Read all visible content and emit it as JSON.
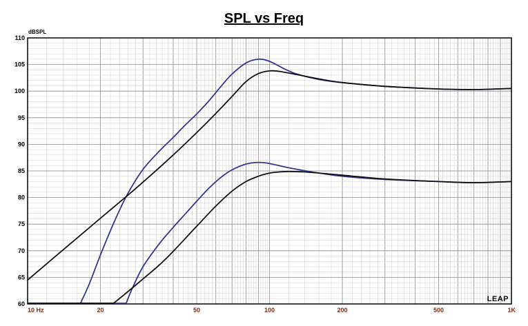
{
  "chart_data": {
    "type": "line",
    "title": "SPL vs Freq",
    "ylabel": "dBSPL",
    "xscale": "log",
    "xlim": [
      10,
      1000
    ],
    "ylim": [
      60,
      110
    ],
    "grid": true,
    "yticks": [
      110,
      105,
      100,
      95,
      90,
      85,
      80,
      75,
      70,
      65,
      60
    ],
    "xtick_labels": [
      {
        "x": 10,
        "label": "10 Hz"
      },
      {
        "x": 20,
        "label": "20"
      },
      {
        "x": 50,
        "label": "50"
      },
      {
        "x": 100,
        "label": "100"
      },
      {
        "x": 200,
        "label": "200"
      },
      {
        "x": 500,
        "label": "500"
      },
      {
        "x": 1000,
        "label": "1K"
      }
    ],
    "series": [
      {
        "color": "#34348f",
        "x": [
          16.5,
          18,
          20,
          23,
          26,
          30,
          35,
          40,
          45,
          50,
          56,
          63,
          70,
          80,
          90,
          100,
          115,
          130,
          160,
          200,
          300,
          400,
          500,
          700,
          1000
        ],
        "y": [
          60,
          63.8,
          69.2,
          75.8,
          80.8,
          85.3,
          88.7,
          91.3,
          93.7,
          95.7,
          98.1,
          100.9,
          103.2,
          105.3,
          106.0,
          105.6,
          104.2,
          103.2,
          102.2,
          101.6,
          100.9,
          100.6,
          100.4,
          100.3,
          100.5
        ]
      },
      {
        "color": "#111111",
        "x": [
          10,
          15,
          20,
          25,
          30,
          40,
          50,
          60,
          70,
          80,
          90,
          100,
          110,
          130,
          160,
          200,
          300,
          500,
          700,
          1000
        ],
        "y": [
          64.5,
          71.3,
          76.1,
          79.8,
          82.9,
          88.0,
          92.2,
          95.8,
          99.0,
          101.8,
          103.3,
          103.8,
          103.7,
          103.1,
          102.3,
          101.6,
          100.9,
          100.4,
          100.3,
          100.5
        ]
      },
      {
        "color": "#34348f",
        "x": [
          25.5,
          27,
          30,
          35,
          40,
          45,
          50,
          56,
          63,
          70,
          80,
          90,
          100,
          120,
          150,
          200,
          300,
          500,
          700,
          1000
        ],
        "y": [
          60,
          62.8,
          67.0,
          71.3,
          74.4,
          77.0,
          79.3,
          81.7,
          83.8,
          85.2,
          86.3,
          86.6,
          86.4,
          85.6,
          84.8,
          84.0,
          83.4,
          83.0,
          82.8,
          83.0
        ]
      },
      {
        "color": "#111111",
        "x": [
          22.5,
          25,
          30,
          35,
          40,
          50,
          60,
          70,
          80,
          90,
          100,
          110,
          120,
          140,
          160,
          200,
          300,
          500,
          700,
          1000
        ],
        "y": [
          60,
          61.7,
          64.7,
          67.3,
          69.9,
          74.6,
          78.4,
          81.2,
          83.0,
          84.0,
          84.6,
          84.8,
          84.9,
          84.8,
          84.6,
          84.2,
          83.5,
          83.0,
          82.8,
          83.0
        ]
      }
    ]
  },
  "branding": {
    "logo": "LEAP"
  }
}
